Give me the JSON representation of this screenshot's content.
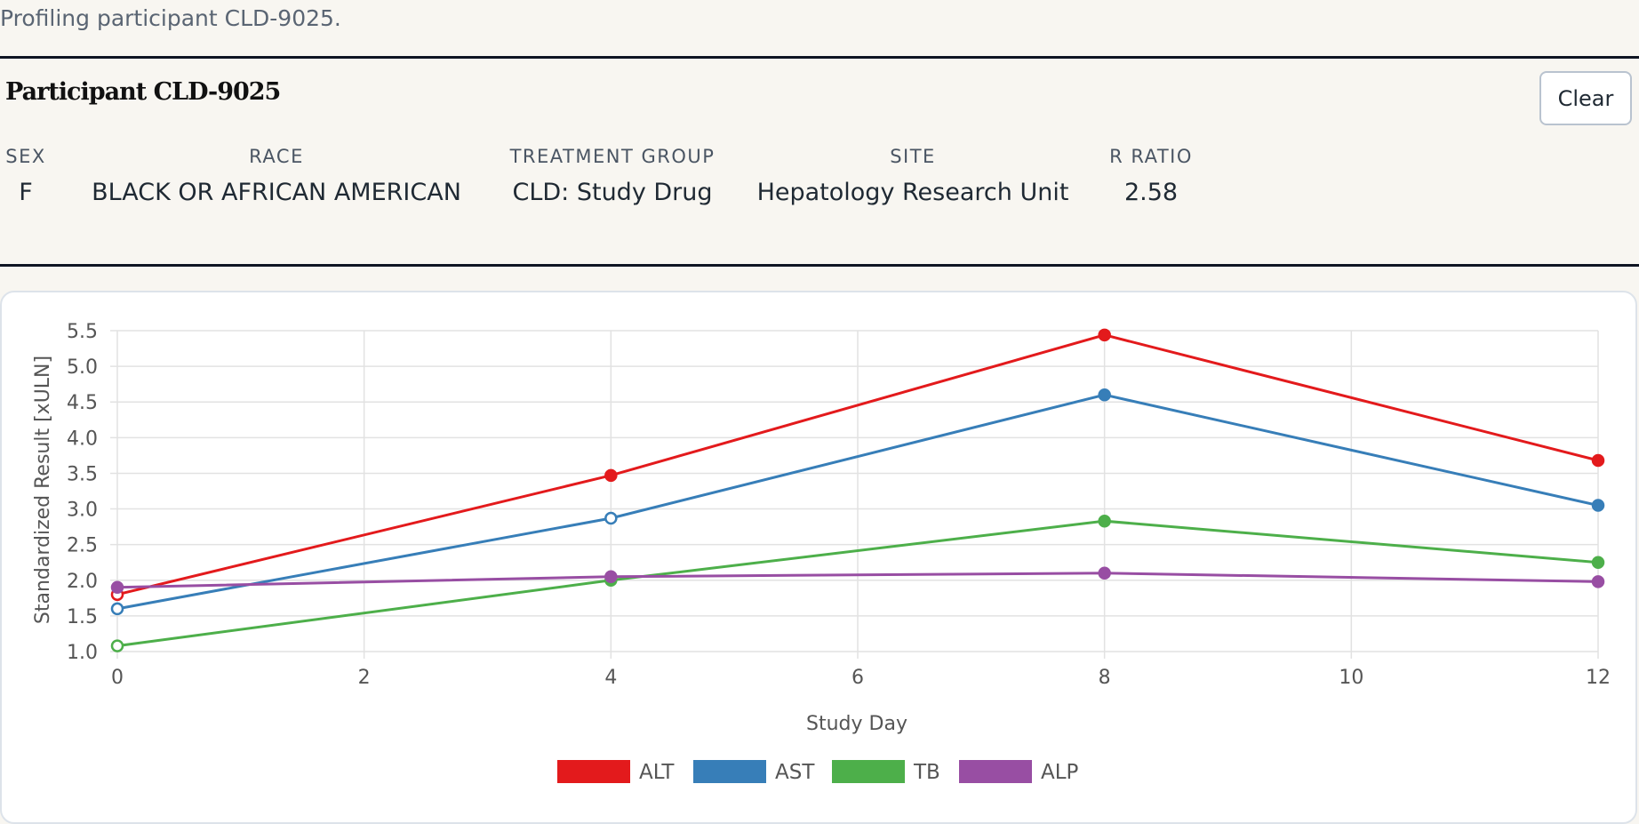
{
  "status_text": "Profiling participant CLD-9025.",
  "participant": {
    "title": "Participant CLD-9025",
    "clear_label": "Clear",
    "fields": [
      {
        "label": "SEX",
        "value": "F"
      },
      {
        "label": "RACE",
        "value": "BLACK OR AFRICAN AMERICAN"
      },
      {
        "label": "TREATMENT GROUP",
        "value": "CLD: Study Drug"
      },
      {
        "label": "SITE",
        "value": "Hepatology Research Unit"
      },
      {
        "label": "R RATIO",
        "value": "2.58"
      }
    ]
  },
  "chart_data": {
    "type": "line",
    "xlabel": "Study Day",
    "ylabel": "Standardized Result [xULN]",
    "xlim": [
      0,
      12
    ],
    "ylim": [
      1.0,
      5.5
    ],
    "xticks": [
      0,
      2,
      4,
      6,
      8,
      10,
      12
    ],
    "yticks": [
      1.0,
      1.5,
      2.0,
      2.5,
      3.0,
      3.5,
      4.0,
      4.5,
      5.0,
      5.5
    ],
    "grid": true,
    "legend_position": "bottom",
    "series": [
      {
        "name": "ALT",
        "color": "#e31a1c",
        "points": [
          {
            "x": 0,
            "y": 1.8,
            "filled": false
          },
          {
            "x": 4,
            "y": 3.47,
            "filled": true
          },
          {
            "x": 8,
            "y": 5.44,
            "filled": true
          },
          {
            "x": 12,
            "y": 3.68,
            "filled": true
          }
        ]
      },
      {
        "name": "AST",
        "color": "#377eb8",
        "points": [
          {
            "x": 0,
            "y": 1.6,
            "filled": false
          },
          {
            "x": 4,
            "y": 2.87,
            "filled": false
          },
          {
            "x": 8,
            "y": 4.6,
            "filled": true
          },
          {
            "x": 12,
            "y": 3.05,
            "filled": true
          }
        ]
      },
      {
        "name": "TB",
        "color": "#4daf4a",
        "points": [
          {
            "x": 0,
            "y": 1.08,
            "filled": false
          },
          {
            "x": 4,
            "y": 2.0,
            "filled": true
          },
          {
            "x": 8,
            "y": 2.83,
            "filled": true
          },
          {
            "x": 12,
            "y": 2.25,
            "filled": true
          }
        ]
      },
      {
        "name": "ALP",
        "color": "#984ea3",
        "points": [
          {
            "x": 0,
            "y": 1.9,
            "filled": true
          },
          {
            "x": 4,
            "y": 2.05,
            "filled": true
          },
          {
            "x": 8,
            "y": 2.1,
            "filled": true
          },
          {
            "x": 12,
            "y": 1.98,
            "filled": true
          }
        ]
      }
    ]
  }
}
